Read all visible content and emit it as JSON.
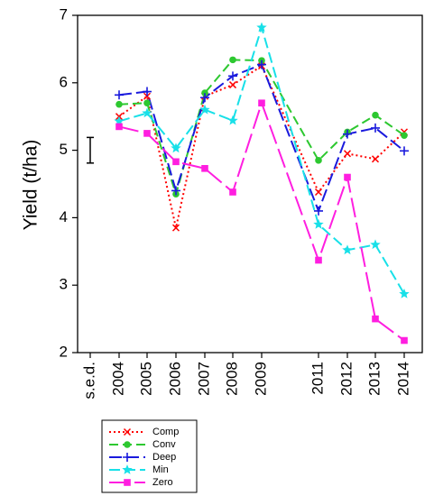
{
  "chart_data": {
    "type": "line",
    "ylabel": "Yield (t/ha)",
    "ylim": [
      2,
      7
    ],
    "yticks": [
      2,
      3,
      4,
      5,
      6,
      7
    ],
    "sed_label": "s.e.d.",
    "sed_value": 0.38,
    "categories": [
      "2004",
      "2005",
      "2006",
      "2007",
      "2008",
      "2009",
      "2011",
      "2012",
      "2013",
      "2014"
    ],
    "legend_position": "bottom-left",
    "series": [
      {
        "name": "Comp",
        "color": "#ff0000",
        "dash": "2 3",
        "marker": "x",
        "values": [
          5.5,
          5.8,
          3.85,
          5.8,
          5.97,
          6.25,
          4.38,
          4.95,
          4.87,
          5.27
        ]
      },
      {
        "name": "Conv",
        "color": "#2dc830",
        "dash": "10 5",
        "marker": "circle",
        "values": [
          5.68,
          5.7,
          4.35,
          5.85,
          6.34,
          6.33,
          4.85,
          5.27,
          5.52,
          5.22
        ]
      },
      {
        "name": "Deep",
        "color": "#1a1add",
        "dash": "14 5",
        "marker": "plus",
        "values": [
          5.82,
          5.87,
          4.4,
          5.78,
          6.1,
          6.27,
          4.1,
          5.24,
          5.33,
          4.99
        ]
      },
      {
        "name": "Min",
        "color": "#18e0e8",
        "dash": "12 5",
        "marker": "star",
        "values": [
          5.43,
          5.55,
          5.03,
          5.6,
          5.44,
          6.82,
          3.9,
          3.52,
          3.6,
          2.87
        ]
      },
      {
        "name": "Zero",
        "color": "#ff1ee0",
        "dash": "22 6",
        "marker": "square",
        "values": [
          5.35,
          5.25,
          4.83,
          4.73,
          4.38,
          5.7,
          3.37,
          4.6,
          2.5,
          2.18
        ]
      }
    ]
  }
}
